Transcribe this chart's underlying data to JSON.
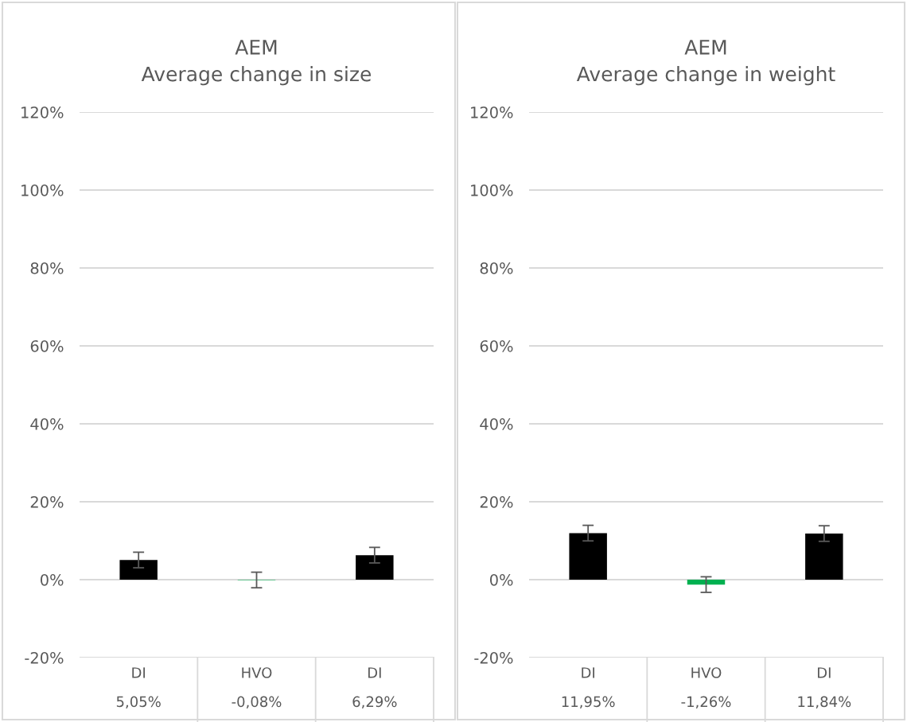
{
  "chart_data": [
    {
      "type": "bar",
      "title": "AEM\nAverage change in size",
      "categories": [
        "DI",
        "HVO",
        "DI"
      ],
      "values": [
        5.05,
        -0.08,
        6.29
      ],
      "colors": [
        "#000000",
        "#00b050",
        "#000000"
      ],
      "errors": [
        2,
        2,
        2
      ],
      "value_labels": [
        "5,05%",
        "-0,08%",
        "6,29%"
      ],
      "ylim": [
        -20,
        120
      ],
      "yticks": [
        {
          "value": -20,
          "label": "-20%"
        },
        {
          "value": 0,
          "label": "0%"
        },
        {
          "value": 20,
          "label": "20%"
        },
        {
          "value": 40,
          "label": "40%"
        },
        {
          "value": 60,
          "label": "60%"
        },
        {
          "value": 80,
          "label": "80%"
        },
        {
          "value": 100,
          "label": "100%"
        },
        {
          "value": 120,
          "label": "120%"
        }
      ],
      "grid": "y"
    },
    {
      "type": "bar",
      "title": "AEM\nAverage change in weight",
      "categories": [
        "DI",
        "HVO",
        "DI"
      ],
      "values": [
        11.95,
        -1.26,
        11.84
      ],
      "colors": [
        "#000000",
        "#00b050",
        "#000000"
      ],
      "errors": [
        2,
        2,
        2
      ],
      "value_labels": [
        "11,95%",
        "-1,26%",
        "11,84%"
      ],
      "ylim": [
        -20,
        120
      ],
      "yticks": [
        {
          "value": -20,
          "label": "-20%"
        },
        {
          "value": 0,
          "label": "0%"
        },
        {
          "value": 20,
          "label": "20%"
        },
        {
          "value": 40,
          "label": "40%"
        },
        {
          "value": 60,
          "label": "60%"
        },
        {
          "value": 80,
          "label": "80%"
        },
        {
          "value": 100,
          "label": "100%"
        },
        {
          "value": 120,
          "label": "120%"
        }
      ],
      "grid": "y"
    }
  ]
}
